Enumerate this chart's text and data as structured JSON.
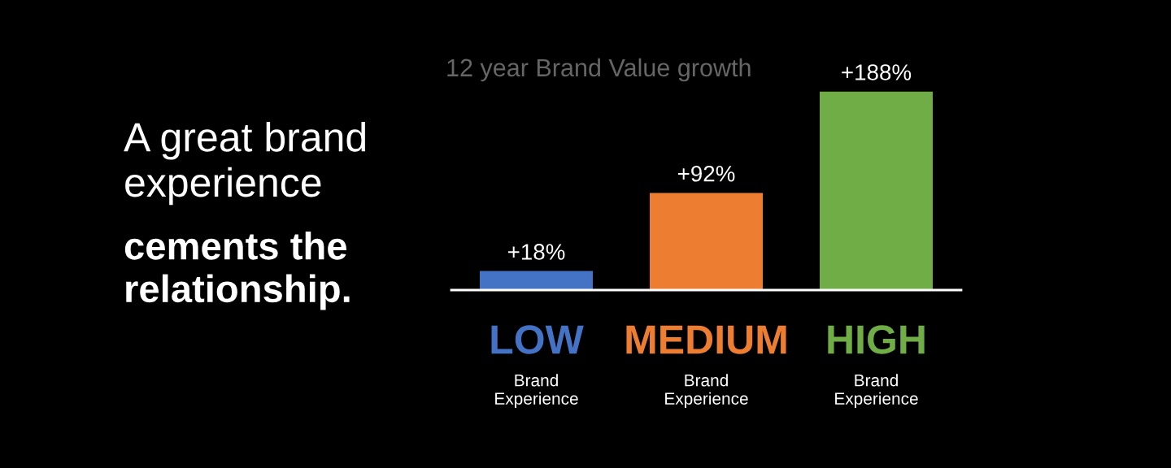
{
  "chart_data": {
    "type": "bar",
    "title": "12 year Brand Value growth",
    "categories": [
      "LOW\nBrand\nExperience",
      "MEDIUM\nBrand\nExperience",
      "HIGH\nBrand\nExperience"
    ],
    "values": [
      18,
      92,
      188
    ],
    "colors": [
      "#4472c4",
      "#ed7d31",
      "#70ad47"
    ],
    "value_labels": [
      "+18%",
      "+92%",
      "+188%"
    ],
    "annotations": [
      "A great brand\nexperience",
      "cements the\nrelationship."
    ]
  }
}
